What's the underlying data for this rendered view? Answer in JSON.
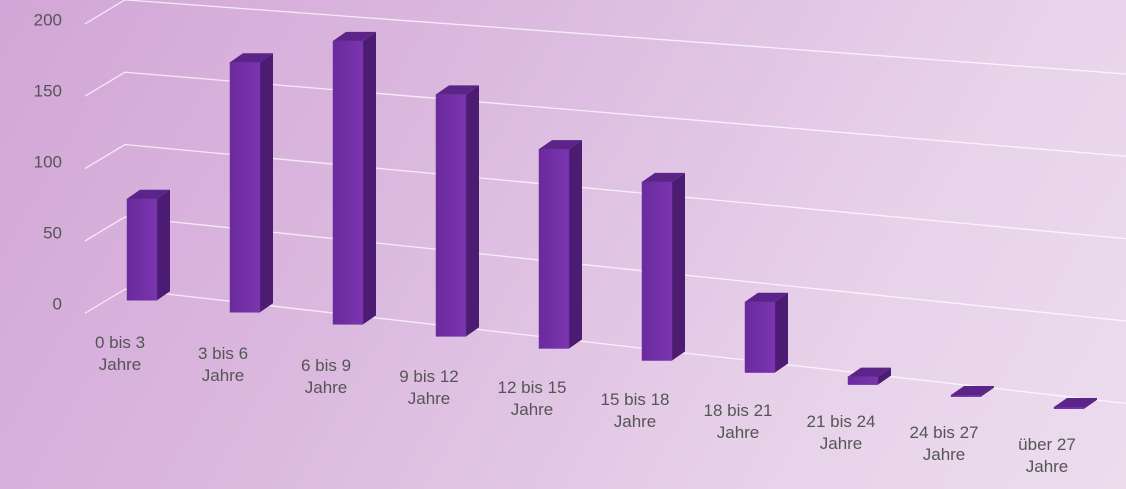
{
  "chart_data": {
    "type": "bar3d",
    "categories": [
      "0 bis 3 Jahre",
      "3 bis 6 Jahre",
      "6 bis 9 Jahre",
      "9 bis 12 Jahre",
      "12 bis 15 Jahre",
      "15 bis 18 Jahre",
      "18 bis 21 Jahre",
      "21 bis 24 Jahre",
      "24 bis 27 Jahre",
      "über 27 Jahre"
    ],
    "values": [
      70,
      170,
      190,
      160,
      130,
      115,
      45,
      5,
      1,
      1
    ],
    "color": "#7030a0",
    "ylim": [
      0,
      200
    ],
    "yticks": [
      0,
      50,
      100,
      150,
      200
    ],
    "grid": true
  }
}
